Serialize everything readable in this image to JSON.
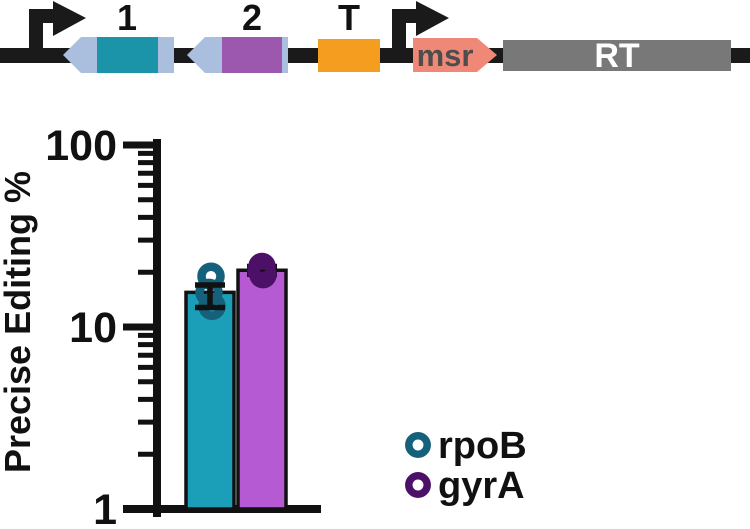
{
  "construct_diagram": {
    "backbone_color": "#1a1a1a",
    "elements": [
      {
        "id": "promoter-1",
        "type": "promoter",
        "icon": "bent-arrow-icon"
      },
      {
        "id": "cassette-1",
        "type": "guide-cassette",
        "label": "1",
        "cassette_color": "#aabede",
        "spacer_color": "#1b93a8"
      },
      {
        "id": "cassette-2",
        "type": "guide-cassette",
        "label": "2",
        "cassette_color": "#aabede",
        "spacer_color": "#9c58ae"
      },
      {
        "id": "terminator",
        "type": "terminator",
        "label": "T",
        "color": "#f59d1e"
      },
      {
        "id": "promoter-2",
        "type": "promoter",
        "icon": "bent-arrow-icon"
      },
      {
        "id": "msr",
        "type": "gene-arrow",
        "label": "msr",
        "color": "#f08878",
        "label_color": "#4d4d4d"
      },
      {
        "id": "rt",
        "type": "gene-box",
        "label": "RT",
        "color": "#787878",
        "label_color": "#ffffff"
      }
    ]
  },
  "chart_data": {
    "type": "bar",
    "yscale": "log",
    "ylabel": "Precise Editing %",
    "ylim": [
      1,
      100
    ],
    "yticks": [
      1,
      10,
      100
    ],
    "grid": false,
    "categories": [
      "rpoB",
      "gyrA"
    ],
    "series": [
      {
        "name": "rpoB",
        "bar_value": 15.5,
        "error_low": 12.8,
        "error_high": 17.0,
        "points": [
          19.0,
          15.5,
          13.0
        ],
        "bar_color": "#1b9fb8",
        "point_color": "#15607a"
      },
      {
        "name": "gyrA",
        "bar_value": 20.5,
        "error_low": 19.5,
        "error_high": 21.5,
        "points": [
          21.5,
          20.5,
          19.4
        ],
        "bar_color": "#b55ad2",
        "point_color": "#4d1068"
      }
    ],
    "legend": {
      "position": "bottom-right",
      "entries": [
        {
          "label": "rpoB",
          "marker": "open-circle",
          "color": "#15607a"
        },
        {
          "label": "gyrA",
          "marker": "open-circle",
          "color": "#4d1068"
        }
      ]
    }
  }
}
